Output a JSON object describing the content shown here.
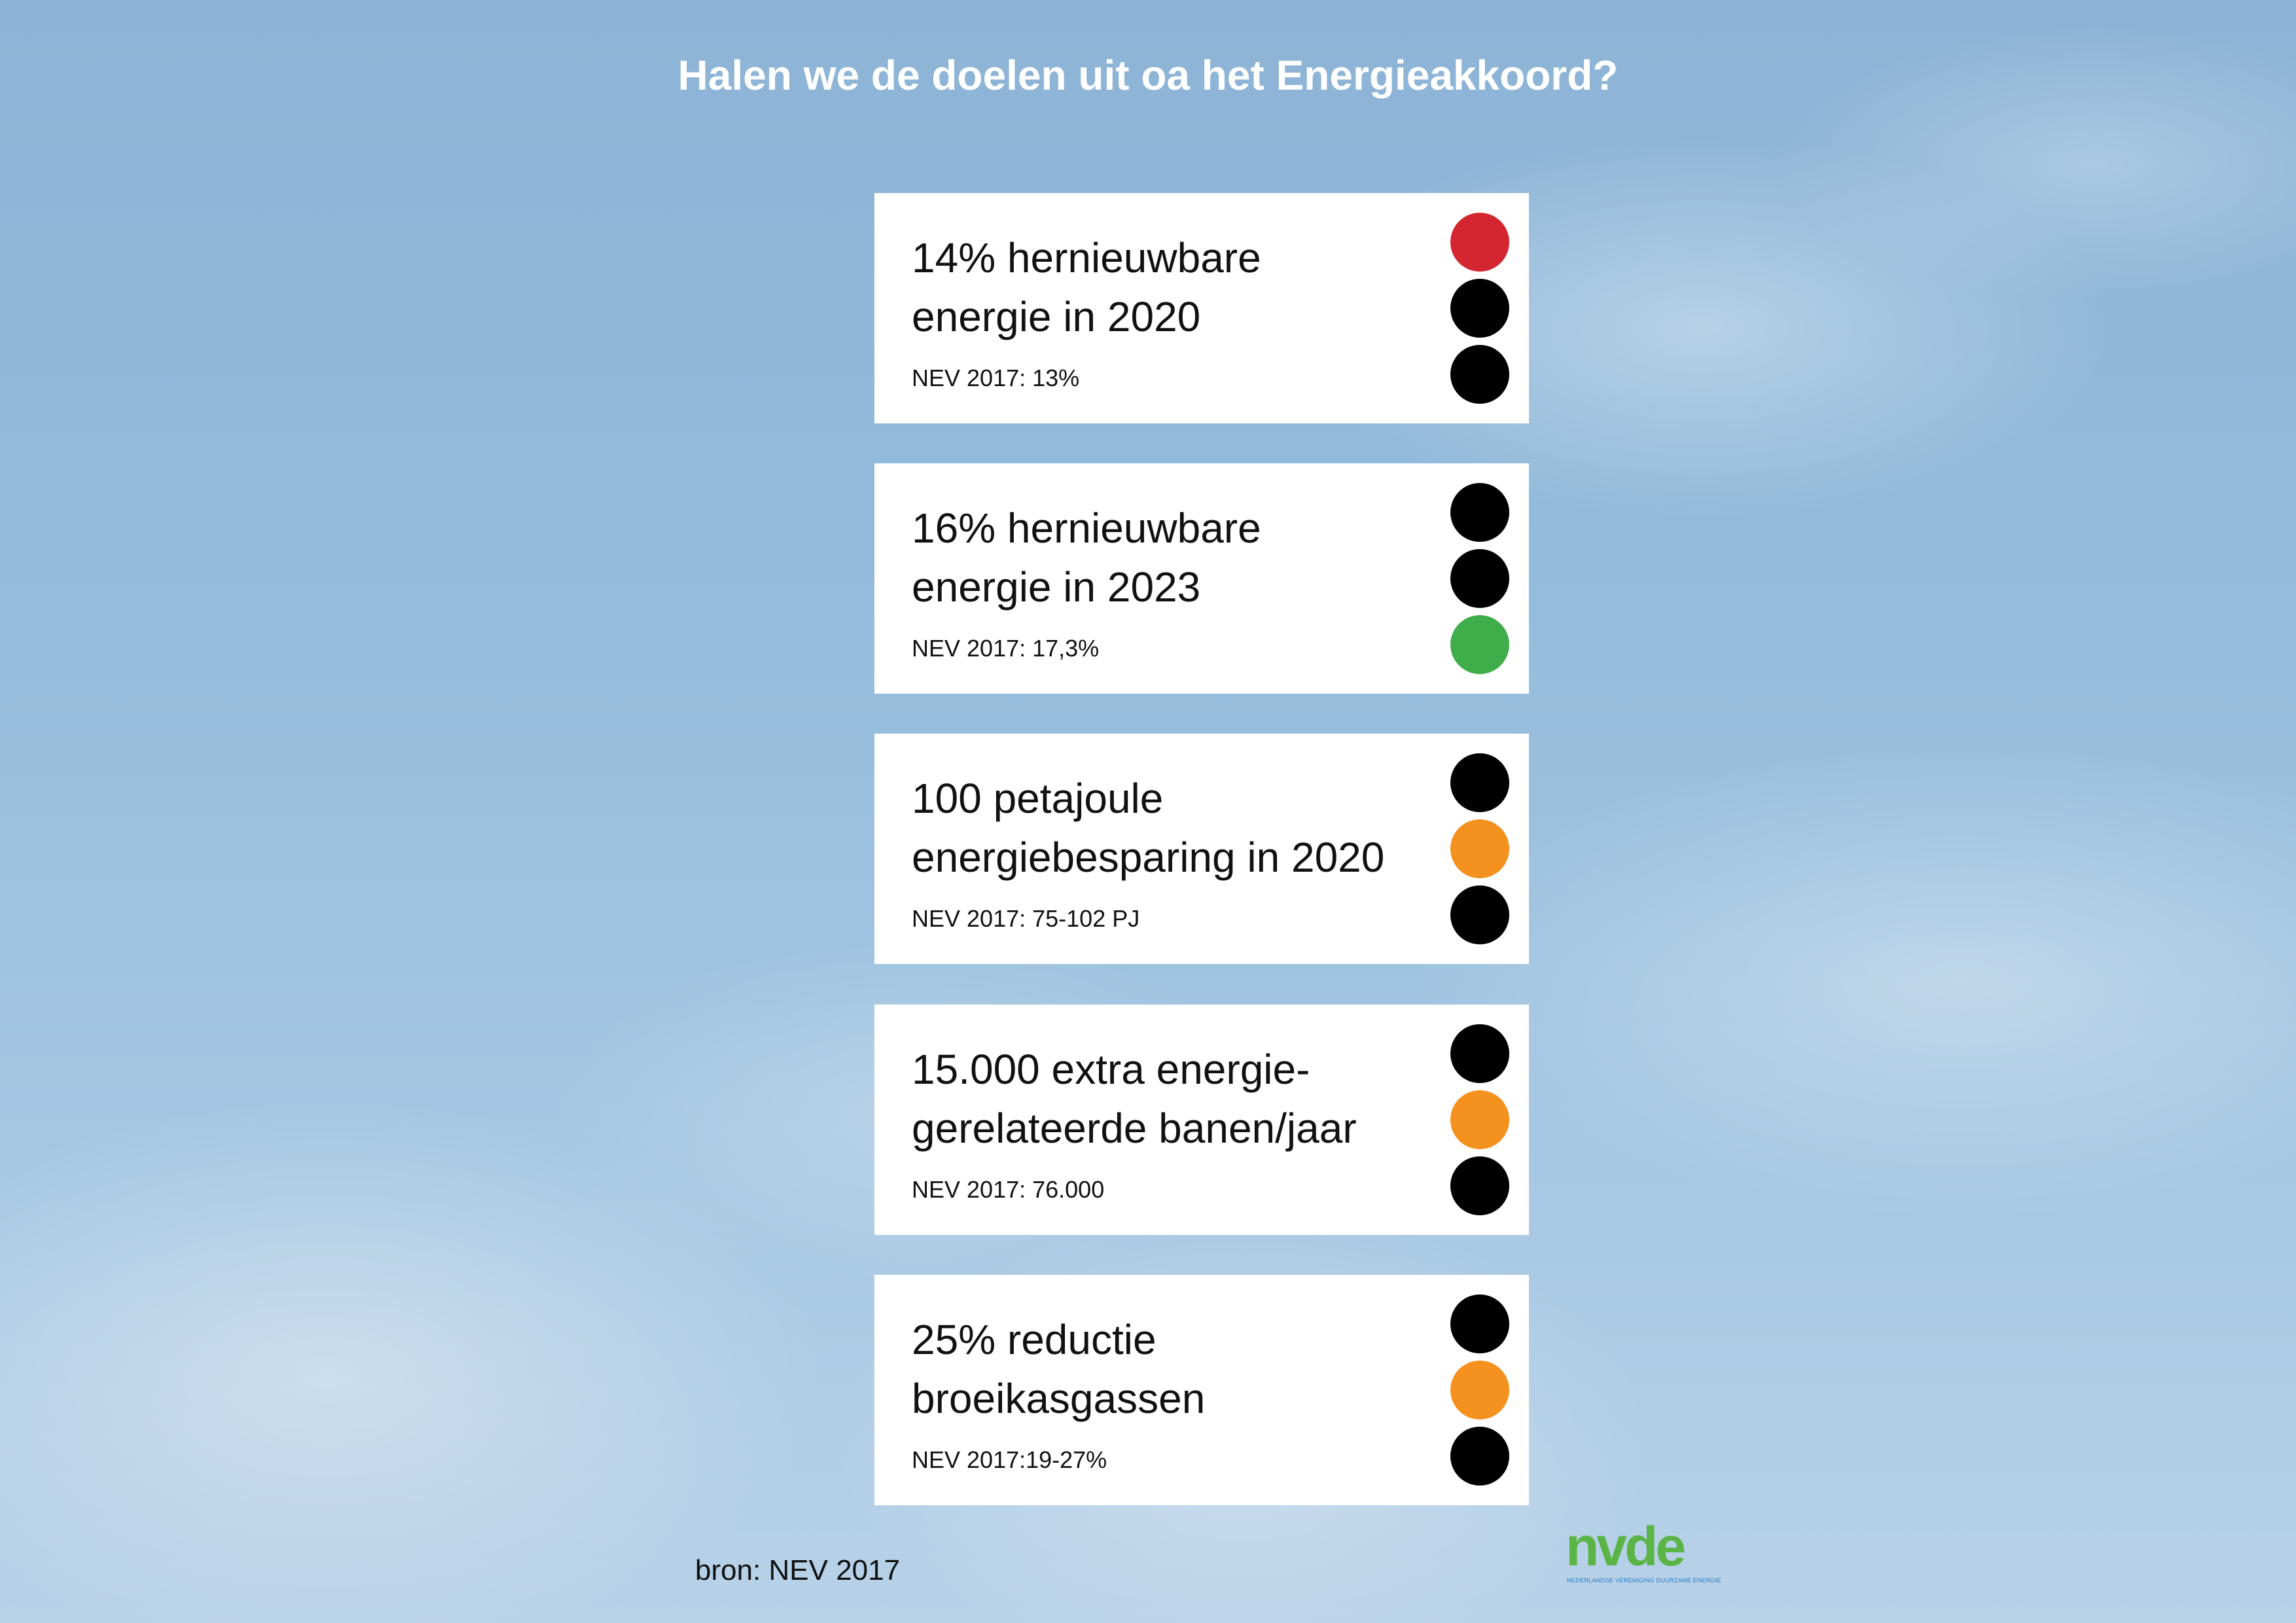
{
  "title": "Halen we de doelen uit oa het Energieakkoord?",
  "colors": {
    "red": "#d32630",
    "orange": "#f5911e",
    "green": "#3fad49",
    "off": "#000000",
    "logo_blue": "#2b7cc4",
    "logo_green": "#5bb546"
  },
  "targets": [
    {
      "line1": "14% hernieuwbare",
      "line2": "energie in 2020",
      "nev": "NEV 2017: 13%",
      "lights": [
        "red",
        "off",
        "off"
      ]
    },
    {
      "line1": "16% hernieuwbare",
      "line2": "energie in 2023",
      "nev": "NEV 2017: 17,3%",
      "lights": [
        "off",
        "off",
        "green"
      ]
    },
    {
      "line1": "100 petajoule",
      "line2": "energiebesparing in 2020",
      "nev": "NEV 2017: 75-102 PJ",
      "lights": [
        "off",
        "orange",
        "off"
      ]
    },
    {
      "line1": "15.000 extra energie-",
      "line2": "gerelateerde banen/jaar",
      "nev": "NEV 2017: 76.000",
      "lights": [
        "off",
        "orange",
        "off"
      ]
    },
    {
      "line1": "25% reductie",
      "line2": "broeikasgassen",
      "nev": "NEV 2017:19-27%",
      "lights": [
        "off",
        "orange",
        "off"
      ]
    }
  ],
  "source": "bron: NEV 2017",
  "logo": {
    "letters": "nvde",
    "tagline": "NEDERLANDSE VERENIGING DUURZAME ENERGIE"
  }
}
